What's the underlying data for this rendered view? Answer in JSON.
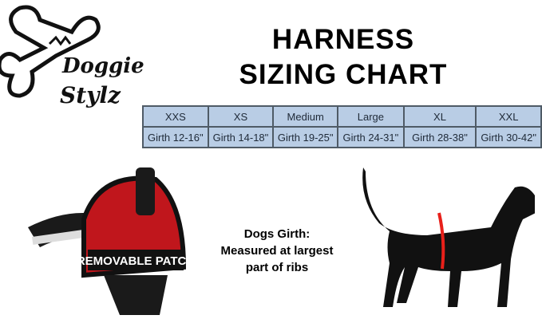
{
  "logo": {
    "line1": "Doggie",
    "line2": "Stylz"
  },
  "title": {
    "line1": "HARNESS",
    "line2": "SIZING CHART"
  },
  "table": {
    "sizes": [
      "XXS",
      "XS",
      "Medium",
      "Large",
      "XL",
      "XXL"
    ],
    "girths": [
      "Girth 12-16\"",
      "Girth 14-18\"",
      "Girth 19-25\"",
      "Girth 24-31\"",
      "Girth 28-38\"",
      "Girth 30-42\""
    ],
    "header_bg": "#b9cde5"
  },
  "harness": {
    "patch_text": "REMOVABLE PATCH",
    "color": "#c0161c"
  },
  "caption": {
    "line1": "Dogs Girth:",
    "line2": "Measured at largest",
    "line3": "part of ribs"
  },
  "dog": {
    "girth_marker_color": "#e8201a"
  }
}
